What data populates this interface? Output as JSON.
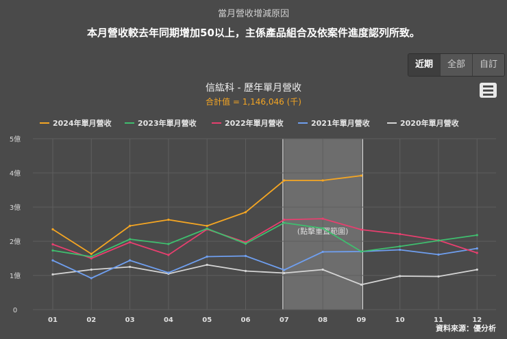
{
  "page": {
    "caption": "當月營收增減原因",
    "headline": "本月營收較去年同期增加50以上，主係產品組合及依案件進度認列所致。"
  },
  "range_buttons": [
    {
      "label": "近期",
      "active": true
    },
    {
      "label": "全部",
      "active": false
    },
    {
      "label": "自訂",
      "active": false
    }
  ],
  "menu": {
    "icon": "hamburger-menu-icon"
  },
  "chart_data": {
    "type": "line",
    "title": "信紘科 - 歷年單月營收",
    "subtitle": "合計值 = 1,146,046 (千)",
    "categories": [
      "01",
      "02",
      "03",
      "04",
      "05",
      "06",
      "07",
      "08",
      "09",
      "10",
      "11",
      "12"
    ],
    "y_ticks": [
      {
        "v": 0,
        "label": "0"
      },
      {
        "v": 1,
        "label": "1億"
      },
      {
        "v": 2,
        "label": "2億"
      },
      {
        "v": 3,
        "label": "3億"
      },
      {
        "v": 4,
        "label": "4億"
      },
      {
        "v": 5,
        "label": "5億"
      }
    ],
    "ylim": [
      0,
      5
    ],
    "unit": "億",
    "highlight": {
      "from": "07",
      "to": "09",
      "label": "(點擊重置範圍)"
    },
    "source": "資料來源：優分析",
    "series": [
      {
        "name": "2024年單月營收",
        "color": "#f5a623",
        "values": [
          2.35,
          1.63,
          2.45,
          2.63,
          2.45,
          2.85,
          3.78,
          3.78,
          3.92,
          null,
          null,
          null
        ]
      },
      {
        "name": "2023年單月營收",
        "color": "#3fbf6f",
        "values": [
          1.73,
          1.55,
          2.06,
          1.92,
          2.37,
          1.93,
          2.54,
          2.38,
          1.7,
          1.85,
          2.02,
          2.18
        ]
      },
      {
        "name": "2022年單月營收",
        "color": "#e83f6f",
        "values": [
          1.91,
          1.5,
          1.97,
          1.6,
          2.35,
          1.97,
          2.63,
          2.66,
          2.34,
          2.21,
          2.03,
          1.66
        ]
      },
      {
        "name": "2021年單月營收",
        "color": "#6f9ff0",
        "values": [
          1.44,
          0.92,
          1.44,
          1.08,
          1.55,
          1.57,
          1.16,
          1.69,
          1.7,
          1.75,
          1.61,
          1.79
        ]
      },
      {
        "name": "2020年單月營收",
        "color": "#d5d5d5",
        "values": [
          1.03,
          1.17,
          1.25,
          1.05,
          1.31,
          1.13,
          1.07,
          1.17,
          0.73,
          0.98,
          0.97,
          1.17
        ]
      }
    ]
  }
}
